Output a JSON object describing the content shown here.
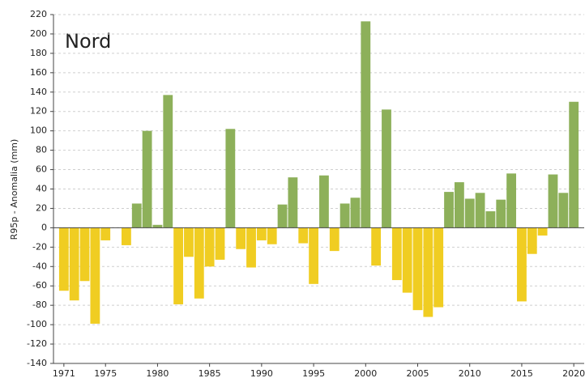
{
  "chart_data": {
    "type": "bar",
    "title": "Nord",
    "y_label": "R95p - Anomalia (mm)",
    "x": [
      1971,
      1972,
      1973,
      1974,
      1975,
      1976,
      1977,
      1978,
      1979,
      1980,
      1981,
      1982,
      1983,
      1984,
      1985,
      1986,
      1987,
      1988,
      1989,
      1990,
      1991,
      1992,
      1993,
      1994,
      1995,
      1996,
      1997,
      1998,
      1999,
      2000,
      2001,
      2002,
      2003,
      2004,
      2005,
      2006,
      2007,
      2008,
      2009,
      2010,
      2011,
      2012,
      2013,
      2014,
      2015,
      2016,
      2017,
      2018,
      2019,
      2020
    ],
    "values": [
      -65,
      -75,
      -55,
      -99,
      -13,
      0,
      -18,
      25,
      100,
      3,
      137,
      -79,
      -30,
      -73,
      -40,
      -33,
      102,
      -22,
      -41,
      -13,
      -17,
      24,
      52,
      -16,
      -58,
      54,
      -24,
      25,
      31,
      213,
      -39,
      122,
      -54,
      -67,
      -85,
      -92,
      -82,
      37,
      47,
      30,
      36,
      17,
      29,
      56,
      -76,
      -27,
      -8,
      55,
      36,
      130
    ],
    "positive_color": "#8db05a",
    "negative_color": "#f0cd22",
    "xlim": [
      1970,
      2021
    ],
    "xticks": [
      1971,
      1975,
      1980,
      1985,
      1990,
      1995,
      2000,
      2005,
      2010,
      2015,
      2020
    ],
    "ylim": [
      -140,
      220
    ],
    "yticks": [
      -140,
      -120,
      -100,
      -80,
      -60,
      -40,
      -20,
      0,
      20,
      40,
      60,
      80,
      100,
      120,
      140,
      160,
      180,
      200,
      220
    ],
    "grid": true
  }
}
